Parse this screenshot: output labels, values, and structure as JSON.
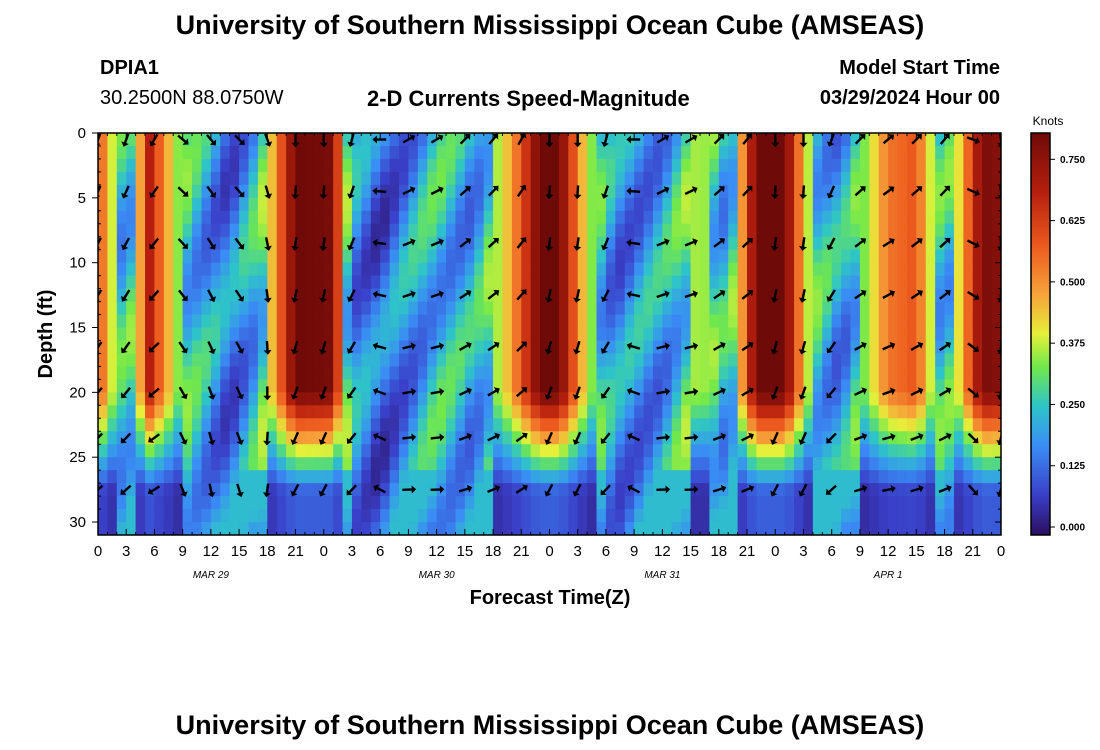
{
  "header": {
    "title": "University of Southern Mississippi Ocean Cube (AMSEAS)",
    "footer_title": "University of Southern Mississippi Ocean Cube (AMSEAS)",
    "station": "DPIA1",
    "coords": "30.2500N  88.0750W",
    "product": "2-D Currents Speed-Magnitude",
    "model_start_label": "Model Start Time",
    "model_start_value": "03/29/2024 Hour 00"
  },
  "chart_data": {
    "type": "heatmap",
    "title": "2-D Currents Speed-Magnitude",
    "xlabel": "Forecast Time(Z)",
    "ylabel": "Depth (ft)",
    "x_tick_labels": [
      "0",
      "3",
      "6",
      "9",
      "12",
      "15",
      "18",
      "21",
      "0",
      "3",
      "6",
      "9",
      "12",
      "15",
      "18",
      "21",
      "0",
      "3",
      "6",
      "9",
      "12",
      "15",
      "18",
      "21",
      "0",
      "3",
      "6",
      "9",
      "12",
      "15",
      "18",
      "21",
      "0"
    ],
    "xlim": [
      0,
      96
    ],
    "date_labels": [
      {
        "text": "MAR 29",
        "hour": 12
      },
      {
        "text": "MAR 30",
        "hour": 36
      },
      {
        "text": "MAR 31",
        "hour": 60
      },
      {
        "text": "APR 1",
        "hour": 84
      }
    ],
    "y_ticks": [
      0,
      5,
      10,
      15,
      20,
      25,
      30
    ],
    "ylim": [
      0,
      31
    ],
    "colorbar": {
      "unit": "Knots",
      "ticks": [
        "0.000",
        "0.125",
        "0.250",
        "0.375",
        "0.500",
        "0.625",
        "0.750"
      ],
      "range": [
        0,
        0.82
      ]
    },
    "speed_profile_surface_knots": [
      {
        "hour": 0,
        "speed": 0.62
      },
      {
        "hour": 3,
        "speed": 0.18
      },
      {
        "hour": 5.5,
        "speed": 0.7
      },
      {
        "hour": 9,
        "speed": 0.3
      },
      {
        "hour": 14,
        "speed": 0.08
      },
      {
        "hour": 17,
        "speed": 0.25
      },
      {
        "hour": 21,
        "speed": 0.82
      },
      {
        "hour": 25,
        "speed": 0.8
      },
      {
        "hour": 27,
        "speed": 0.15
      },
      {
        "hour": 30,
        "speed": 0.05
      },
      {
        "hour": 36,
        "speed": 0.25
      },
      {
        "hour": 40,
        "speed": 0.18
      },
      {
        "hour": 44,
        "speed": 0.5
      },
      {
        "hour": 47,
        "speed": 0.82
      },
      {
        "hour": 49,
        "speed": 0.82
      },
      {
        "hour": 52,
        "speed": 0.4
      },
      {
        "hour": 55,
        "speed": 0.12
      },
      {
        "hour": 60,
        "speed": 0.18
      },
      {
        "hour": 64,
        "speed": 0.4
      },
      {
        "hour": 67,
        "speed": 0.2
      },
      {
        "hour": 70,
        "speed": 0.82
      },
      {
        "hour": 73,
        "speed": 0.82
      },
      {
        "hour": 76,
        "speed": 0.3
      },
      {
        "hour": 79,
        "speed": 0.15
      },
      {
        "hour": 84,
        "speed": 0.55
      },
      {
        "hour": 87,
        "speed": 0.6
      },
      {
        "hour": 90,
        "speed": 0.2
      },
      {
        "hour": 94,
        "speed": 0.8
      },
      {
        "hour": 96,
        "speed": 0.78
      }
    ],
    "vector_rows_depth_ft": [
      0.5,
      4.5,
      8.5,
      12.5,
      16.5,
      20,
      23.5,
      27.5
    ],
    "vector_hours": [
      0,
      3,
      6,
      9,
      12,
      15,
      18,
      21,
      24,
      27,
      30,
      33,
      36,
      39,
      42,
      45,
      48,
      51,
      54,
      57,
      60,
      63,
      66,
      69,
      72,
      75,
      78,
      81,
      84,
      87,
      90,
      93,
      96
    ],
    "vector_directions_deg_by_hour": [
      200,
      200,
      210,
      130,
      140,
      135,
      160,
      180,
      180,
      195,
      270,
      60,
      60,
      45,
      40,
      30,
      180,
      180,
      195,
      270,
      60,
      60,
      45,
      40,
      180,
      180,
      200,
      45,
      50,
      45,
      40,
      110,
      170
    ]
  }
}
